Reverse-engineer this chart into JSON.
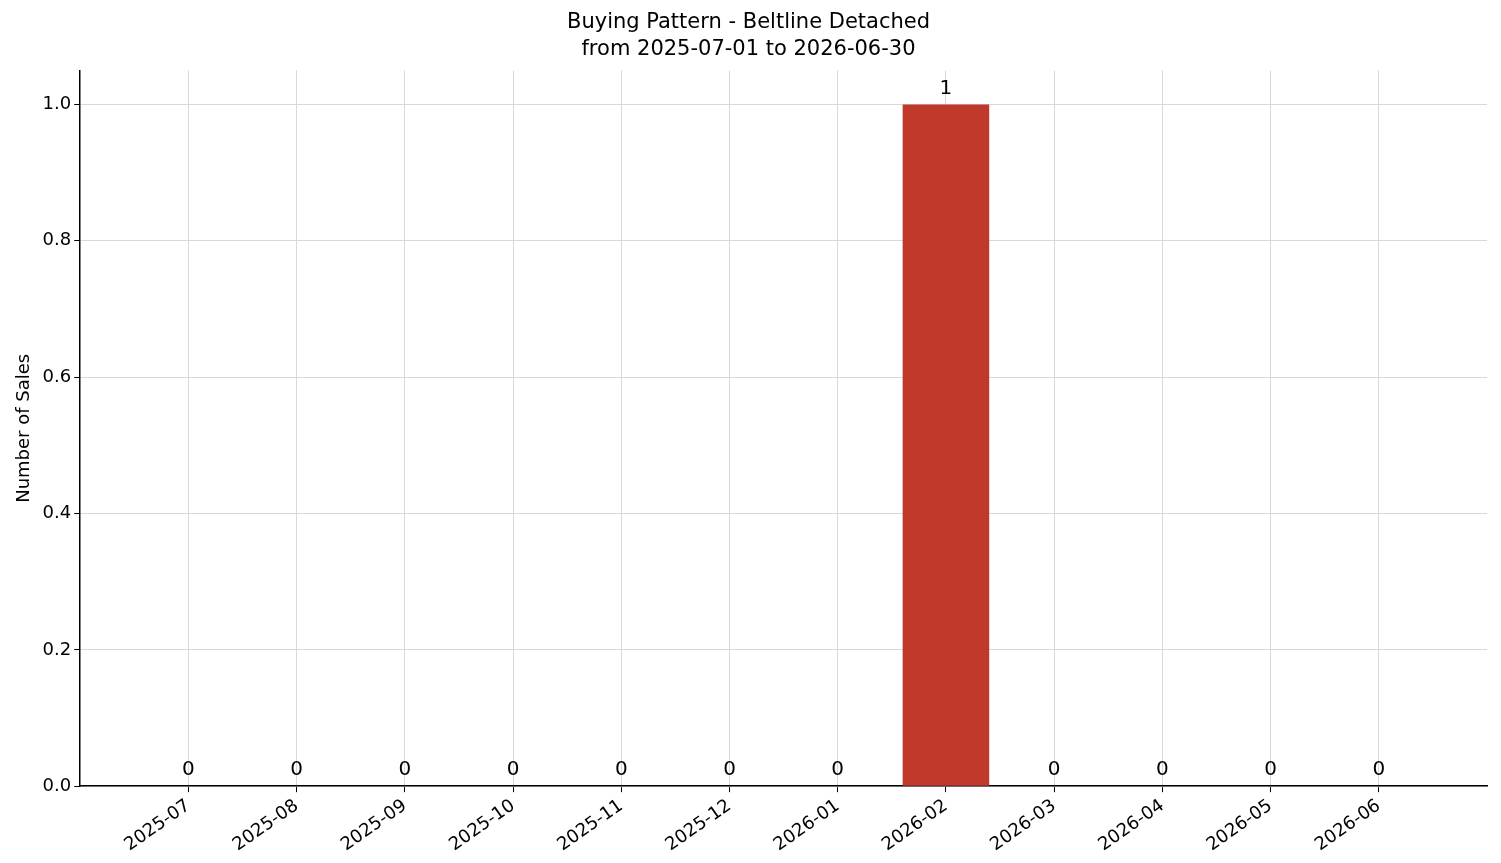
{
  "chart_data": {
    "type": "bar",
    "title": "Buying Pattern - Beltline Detached",
    "subtitle": "from 2025-07-01 to 2026-06-30",
    "ylabel": "Number of Sales",
    "categories": [
      "2025-07",
      "2025-08",
      "2025-09",
      "2025-10",
      "2025-11",
      "2025-12",
      "2026-01",
      "2026-02",
      "2026-03",
      "2026-04",
      "2026-05",
      "2026-06"
    ],
    "values": [
      0,
      0,
      0,
      0,
      0,
      0,
      0,
      1,
      0,
      0,
      0,
      0
    ],
    "color": "#c0392b",
    "ylim": [
      0,
      1.05
    ],
    "yticks": [
      {
        "value": 0,
        "label": "0.0"
      },
      {
        "value": 0.2,
        "label": "0.2"
      },
      {
        "value": 0.4,
        "label": "0.4"
      },
      {
        "value": 0.6,
        "label": "0.6"
      },
      {
        "value": 0.8,
        "label": "0.8"
      },
      {
        "value": 1,
        "label": "1.0"
      }
    ],
    "grid": true,
    "data_labels": true,
    "legend": false
  }
}
